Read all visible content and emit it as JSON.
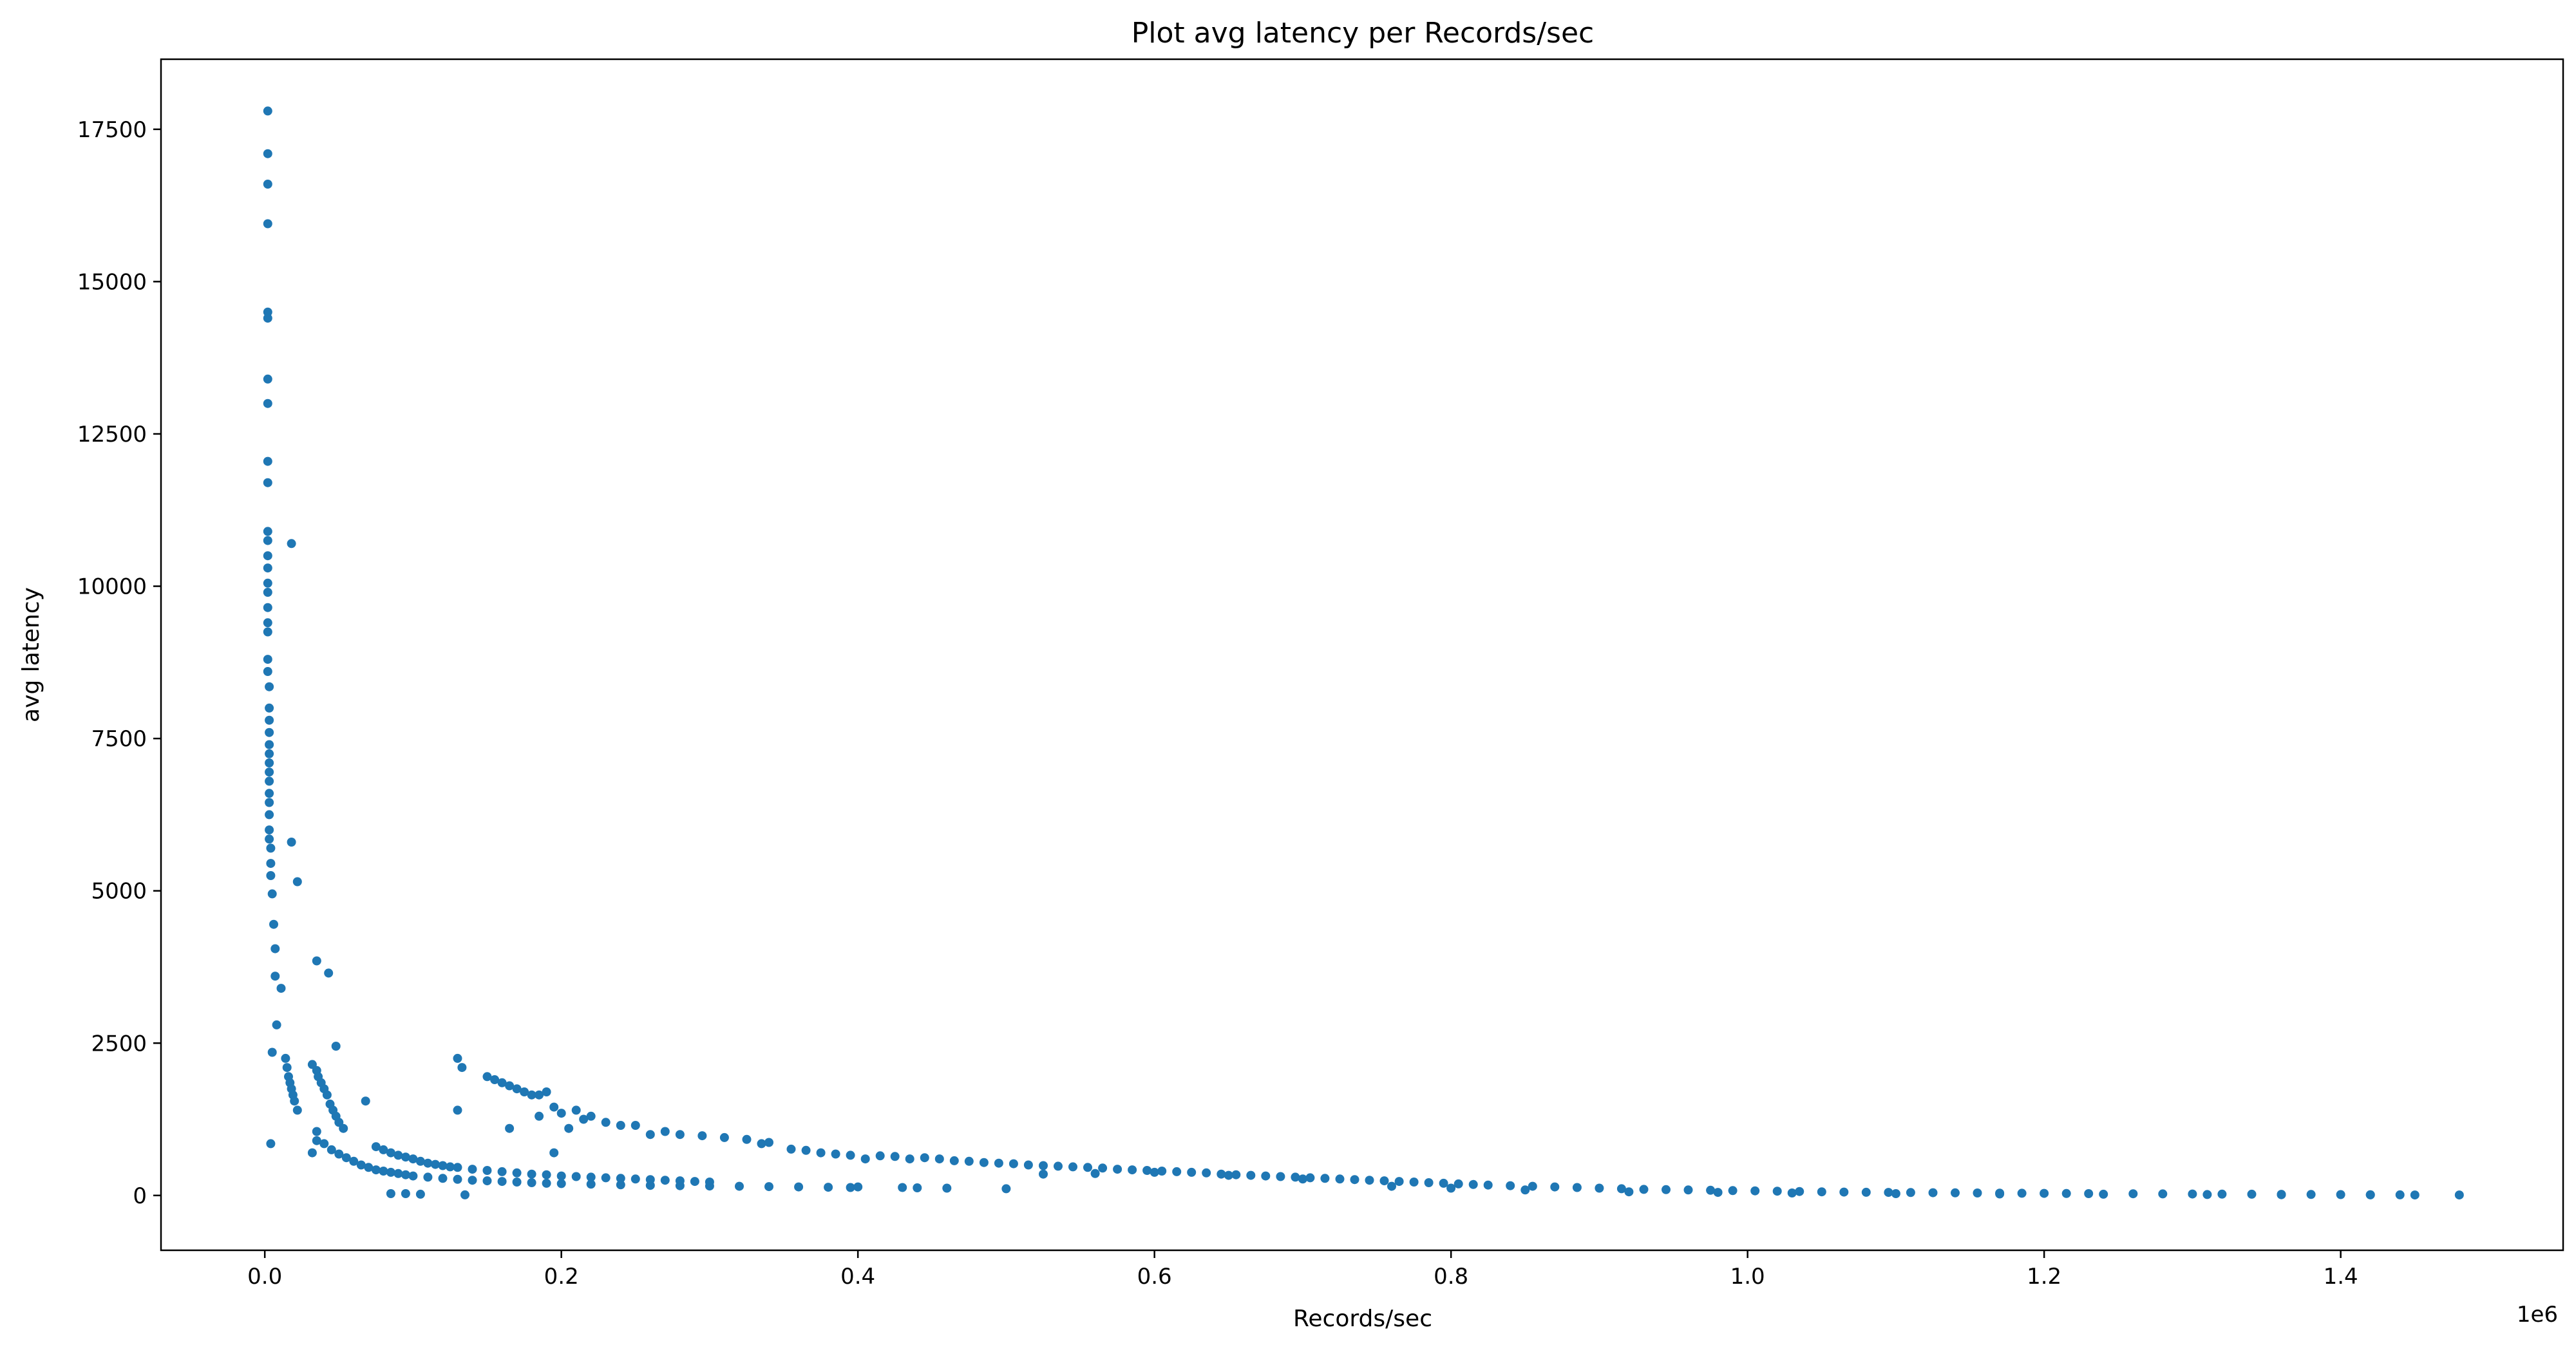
{
  "chart_data": {
    "type": "scatter",
    "title": "Plot avg latency per Records/sec",
    "xlabel": "Records/sec",
    "ylabel": "avg latency",
    "x_offset_label": "1e6",
    "xlim": [
      -70000,
      1550000
    ],
    "ylim": [
      -900,
      18650
    ],
    "x_ticks": [
      0,
      200000,
      400000,
      600000,
      800000,
      1000000,
      1200000,
      1400000
    ],
    "x_tick_labels": [
      "0.0",
      "0.2",
      "0.4",
      "0.6",
      "0.8",
      "1.0",
      "1.2",
      "1.4"
    ],
    "y_ticks": [
      0,
      2500,
      5000,
      7500,
      10000,
      12500,
      15000,
      17500
    ],
    "y_tick_labels": [
      "0",
      "2500",
      "5000",
      "7500",
      "10000",
      "12500",
      "15000",
      "17500"
    ],
    "grid": false,
    "marker_color": "#1f77b4",
    "points": [
      [
        2000,
        17800
      ],
      [
        2000,
        17100
      ],
      [
        2000,
        16600
      ],
      [
        2000,
        15950
      ],
      [
        2000,
        14500
      ],
      [
        2000,
        14400
      ],
      [
        2000,
        13400
      ],
      [
        2000,
        13000
      ],
      [
        2000,
        12050
      ],
      [
        2000,
        11700
      ],
      [
        2000,
        10900
      ],
      [
        2000,
        10750
      ],
      [
        2000,
        10500
      ],
      [
        2000,
        10300
      ],
      [
        2000,
        10050
      ],
      [
        2000,
        9900
      ],
      [
        2000,
        9650
      ],
      [
        2000,
        9400
      ],
      [
        2000,
        9250
      ],
      [
        2000,
        8800
      ],
      [
        2000,
        8600
      ],
      [
        3000,
        8350
      ],
      [
        3000,
        8000
      ],
      [
        3000,
        7800
      ],
      [
        3000,
        7600
      ],
      [
        3000,
        7400
      ],
      [
        3000,
        7250
      ],
      [
        3000,
        7100
      ],
      [
        3000,
        6950
      ],
      [
        3000,
        6800
      ],
      [
        3000,
        6600
      ],
      [
        3000,
        6450
      ],
      [
        3000,
        6250
      ],
      [
        3000,
        6000
      ],
      [
        3000,
        5850
      ],
      [
        4000,
        5700
      ],
      [
        4000,
        5450
      ],
      [
        4000,
        5250
      ],
      [
        5000,
        4950
      ],
      [
        6000,
        4450
      ],
      [
        7000,
        4050
      ],
      [
        7000,
        3600
      ],
      [
        8000,
        2800
      ],
      [
        5000,
        2350
      ],
      [
        4000,
        850
      ],
      [
        11000,
        3400
      ],
      [
        14000,
        2250
      ],
      [
        15000,
        2100
      ],
      [
        16000,
        1950
      ],
      [
        17000,
        1850
      ],
      [
        18000,
        1750
      ],
      [
        19000,
        1650
      ],
      [
        20000,
        1550
      ],
      [
        22000,
        1400
      ],
      [
        18000,
        10700
      ],
      [
        18000,
        5800
      ],
      [
        22000,
        5150
      ],
      [
        35000,
        3850
      ],
      [
        43000,
        3650
      ],
      [
        48000,
        2450
      ],
      [
        32000,
        2150
      ],
      [
        35000,
        2050
      ],
      [
        36000,
        1950
      ],
      [
        38000,
        1850
      ],
      [
        40000,
        1750
      ],
      [
        42000,
        1650
      ],
      [
        44000,
        1500
      ],
      [
        46000,
        1400
      ],
      [
        48000,
        1300
      ],
      [
        50000,
        1200
      ],
      [
        53000,
        1100
      ],
      [
        68000,
        1550
      ],
      [
        35000,
        1050
      ],
      [
        35000,
        900
      ],
      [
        32000,
        700
      ],
      [
        40000,
        850
      ],
      [
        45000,
        750
      ],
      [
        50000,
        680
      ],
      [
        55000,
        620
      ],
      [
        60000,
        560
      ],
      [
        65000,
        500
      ],
      [
        70000,
        460
      ],
      [
        75000,
        420
      ],
      [
        80000,
        400
      ],
      [
        85000,
        380
      ],
      [
        90000,
        360
      ],
      [
        95000,
        340
      ],
      [
        100000,
        320
      ],
      [
        110000,
        300
      ],
      [
        120000,
        280
      ],
      [
        130000,
        265
      ],
      [
        140000,
        250
      ],
      [
        150000,
        240
      ],
      [
        160000,
        230
      ],
      [
        170000,
        220
      ],
      [
        180000,
        210
      ],
      [
        190000,
        200
      ],
      [
        200000,
        195
      ],
      [
        220000,
        185
      ],
      [
        240000,
        175
      ],
      [
        260000,
        165
      ],
      [
        280000,
        160
      ],
      [
        300000,
        155
      ],
      [
        320000,
        150
      ],
      [
        340000,
        145
      ],
      [
        360000,
        140
      ],
      [
        380000,
        135
      ],
      [
        395000,
        130
      ],
      [
        75000,
        800
      ],
      [
        80000,
        750
      ],
      [
        85000,
        700
      ],
      [
        90000,
        660
      ],
      [
        95000,
        630
      ],
      [
        100000,
        600
      ],
      [
        105000,
        560
      ],
      [
        110000,
        530
      ],
      [
        115000,
        510
      ],
      [
        120000,
        490
      ],
      [
        125000,
        470
      ],
      [
        130000,
        460
      ],
      [
        140000,
        430
      ],
      [
        150000,
        410
      ],
      [
        160000,
        390
      ],
      [
        170000,
        370
      ],
      [
        180000,
        350
      ],
      [
        190000,
        340
      ],
      [
        200000,
        320
      ],
      [
        210000,
        310
      ],
      [
        220000,
        300
      ],
      [
        230000,
        290
      ],
      [
        240000,
        280
      ],
      [
        250000,
        270
      ],
      [
        260000,
        260
      ],
      [
        270000,
        250
      ],
      [
        280000,
        240
      ],
      [
        290000,
        230
      ],
      [
        300000,
        220
      ],
      [
        85000,
        30
      ],
      [
        95000,
        30
      ],
      [
        105000,
        20
      ],
      [
        135000,
        10
      ],
      [
        195000,
        700
      ],
      [
        130000,
        1400
      ],
      [
        130000,
        2250
      ],
      [
        133000,
        2100
      ],
      [
        150000,
        1950
      ],
      [
        155000,
        1900
      ],
      [
        160000,
        1850
      ],
      [
        165000,
        1800
      ],
      [
        170000,
        1750
      ],
      [
        175000,
        1700
      ],
      [
        180000,
        1650
      ],
      [
        185000,
        1650
      ],
      [
        190000,
        1700
      ],
      [
        165000,
        1100
      ],
      [
        185000,
        1300
      ],
      [
        195000,
        1450
      ],
      [
        200000,
        1350
      ],
      [
        205000,
        1100
      ],
      [
        210000,
        1400
      ],
      [
        215000,
        1250
      ],
      [
        220000,
        1300
      ],
      [
        230000,
        1200
      ],
      [
        240000,
        1150
      ],
      [
        250000,
        1150
      ],
      [
        260000,
        1000
      ],
      [
        270000,
        1050
      ],
      [
        280000,
        1000
      ],
      [
        295000,
        980
      ],
      [
        310000,
        950
      ],
      [
        325000,
        920
      ],
      [
        335000,
        850
      ],
      [
        340000,
        870
      ],
      [
        355000,
        760
      ],
      [
        365000,
        740
      ],
      [
        375000,
        700
      ],
      [
        385000,
        680
      ],
      [
        395000,
        660
      ],
      [
        405000,
        600
      ],
      [
        415000,
        650
      ],
      [
        425000,
        640
      ],
      [
        435000,
        600
      ],
      [
        445000,
        620
      ],
      [
        455000,
        600
      ],
      [
        465000,
        570
      ],
      [
        475000,
        560
      ],
      [
        485000,
        540
      ],
      [
        495000,
        530
      ],
      [
        505000,
        520
      ],
      [
        515000,
        500
      ],
      [
        525000,
        490
      ],
      [
        535000,
        480
      ],
      [
        545000,
        470
      ],
      [
        555000,
        460
      ],
      [
        565000,
        450
      ],
      [
        575000,
        430
      ],
      [
        585000,
        420
      ],
      [
        595000,
        410
      ],
      [
        605000,
        400
      ],
      [
        615000,
        390
      ],
      [
        625000,
        380
      ],
      [
        635000,
        370
      ],
      [
        645000,
        350
      ],
      [
        655000,
        340
      ],
      [
        665000,
        330
      ],
      [
        675000,
        320
      ],
      [
        685000,
        310
      ],
      [
        695000,
        300
      ],
      [
        705000,
        290
      ],
      [
        715000,
        280
      ],
      [
        725000,
        270
      ],
      [
        735000,
        260
      ],
      [
        745000,
        250
      ],
      [
        755000,
        240
      ],
      [
        765000,
        230
      ],
      [
        775000,
        220
      ],
      [
        785000,
        210
      ],
      [
        795000,
        200
      ],
      [
        805000,
        190
      ],
      [
        815000,
        180
      ],
      [
        825000,
        170
      ],
      [
        840000,
        160
      ],
      [
        855000,
        150
      ],
      [
        870000,
        140
      ],
      [
        885000,
        130
      ],
      [
        900000,
        120
      ],
      [
        915000,
        110
      ],
      [
        930000,
        100
      ],
      [
        945000,
        95
      ],
      [
        960000,
        90
      ],
      [
        975000,
        85
      ],
      [
        990000,
        80
      ],
      [
        1005000,
        75
      ],
      [
        1020000,
        70
      ],
      [
        1035000,
        65
      ],
      [
        1050000,
        60
      ],
      [
        1065000,
        55
      ],
      [
        1080000,
        52
      ],
      [
        1095000,
        50
      ],
      [
        1110000,
        48
      ],
      [
        1125000,
        45
      ],
      [
        1140000,
        43
      ],
      [
        1155000,
        40
      ],
      [
        1170000,
        38
      ],
      [
        1185000,
        36
      ],
      [
        1200000,
        34
      ],
      [
        1215000,
        32
      ],
      [
        1230000,
        30
      ],
      [
        1260000,
        28
      ],
      [
        1280000,
        26
      ],
      [
        1300000,
        24
      ],
      [
        1320000,
        22
      ],
      [
        1340000,
        20
      ],
      [
        1360000,
        18
      ],
      [
        1380000,
        16
      ],
      [
        1400000,
        14
      ],
      [
        1420000,
        12
      ],
      [
        1440000,
        10
      ],
      [
        1480000,
        8
      ],
      [
        430000,
        130
      ],
      [
        460000,
        120
      ],
      [
        500000,
        110
      ],
      [
        400000,
        140
      ],
      [
        440000,
        125
      ],
      [
        525000,
        350
      ],
      [
        560000,
        360
      ],
      [
        600000,
        380
      ],
      [
        650000,
        330
      ],
      [
        700000,
        270
      ],
      [
        760000,
        150
      ],
      [
        800000,
        120
      ],
      [
        850000,
        90
      ],
      [
        920000,
        60
      ],
      [
        980000,
        50
      ],
      [
        1030000,
        40
      ],
      [
        1100000,
        30
      ],
      [
        1170000,
        25
      ],
      [
        1240000,
        20
      ],
      [
        1310000,
        15
      ],
      [
        1360000,
        12
      ],
      [
        1420000,
        10
      ],
      [
        1450000,
        8
      ]
    ]
  }
}
